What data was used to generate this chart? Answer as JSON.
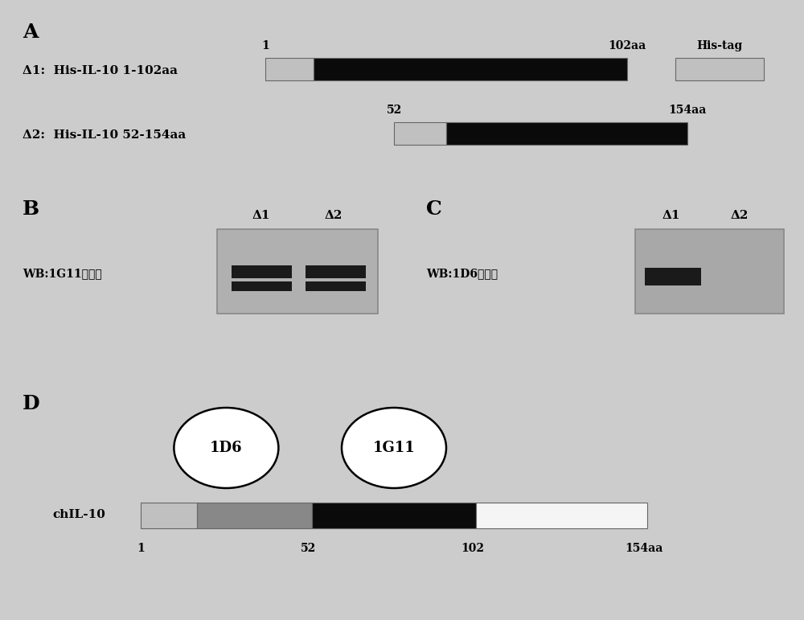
{
  "bg_color": "#cccccc",
  "panel_A_label": "A",
  "panel_B_label": "B",
  "panel_C_label": "C",
  "panel_D_label": "D",
  "delta1_label": "Δ1:  His-IL-10 1-102aa",
  "delta2_label": "Δ2:  His-IL-10 52-154aa",
  "delta1_num_start": "1",
  "delta1_num_end": "102aa",
  "delta2_num_start": "52",
  "delta2_num_end": "154aa",
  "histag_label": "His-tag",
  "wb_B_label": "WB:1G11株单抗",
  "wb_C_label": "WB:1D6株单抗",
  "delta1_B": "Δ1",
  "delta2_B": "Δ2",
  "delta1_C": "Δ1",
  "delta2_C": "Δ2",
  "chIL10_label": "chIL-10",
  "label_1D6": "1D6",
  "label_1G11": "1G11",
  "tick_1": "1",
  "tick_52": "52",
  "tick_102": "102",
  "tick_154aa": "154aa",
  "light_gray": "#c0c0c0",
  "med_gray": "#888888",
  "dark_gray": "#505050",
  "black": "#0a0a0a",
  "white": "#f5f5f5",
  "gel_bg_B": "#b0b0b0",
  "gel_bg_C": "#a8a8a8",
  "band_color": "#1a1a1a"
}
